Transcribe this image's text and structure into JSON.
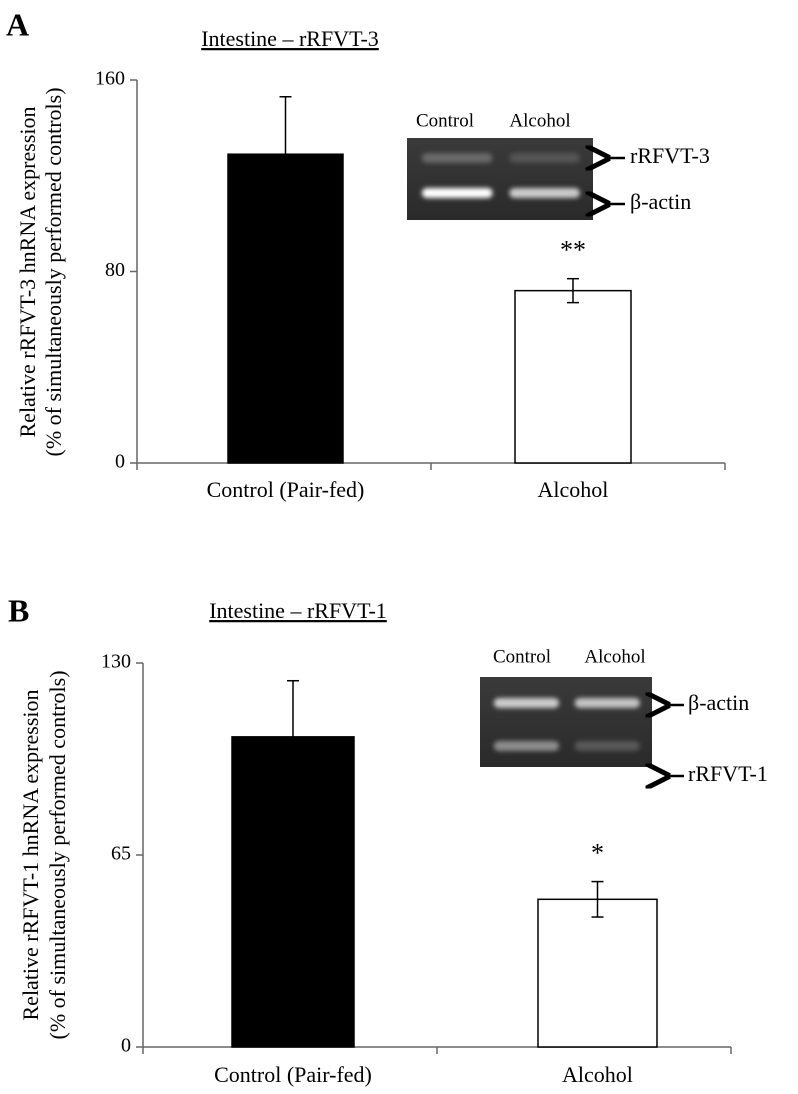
{
  "chart_data": [
    {
      "type": "bar",
      "panel": "A",
      "title": "Intestine – rRFVT-3",
      "ylabel": [
        "Relative rRFVT-3  hnRNA expression",
        "(% of simultaneously performed controls)"
      ],
      "categories": [
        "Control (Pair-fed)",
        "Alcohol"
      ],
      "values": [
        129,
        72
      ],
      "errors": [
        24,
        5
      ],
      "colors": [
        "#000000",
        "#ffffff"
      ],
      "value_labels": [
        null,
        "**"
      ],
      "ylim": [
        0,
        160
      ],
      "yticks": [
        0,
        80,
        160
      ],
      "inset": {
        "lanes": [
          "Control",
          "Alcohol"
        ],
        "bands": [
          "rRFVT-3",
          "β-actin"
        ]
      }
    },
    {
      "type": "bar",
      "panel": "B",
      "title": "Intestine – rRFVT-1",
      "ylabel": [
        "Relative rRFVT-1 hnRNA expression",
        "(% of simultaneously performed controls)"
      ],
      "categories": [
        "Control (Pair-fed)",
        "Alcohol"
      ],
      "values": [
        105,
        50
      ],
      "errors": [
        19,
        6
      ],
      "colors": [
        "#000000",
        "#ffffff"
      ],
      "value_labels": [
        null,
        "*"
      ],
      "ylim": [
        0,
        130
      ],
      "yticks": [
        0,
        65,
        130
      ],
      "inset": {
        "lanes": [
          "Control",
          "Alcohol"
        ],
        "bands": [
          "β-actin",
          "rRFVT-1"
        ]
      }
    }
  ]
}
